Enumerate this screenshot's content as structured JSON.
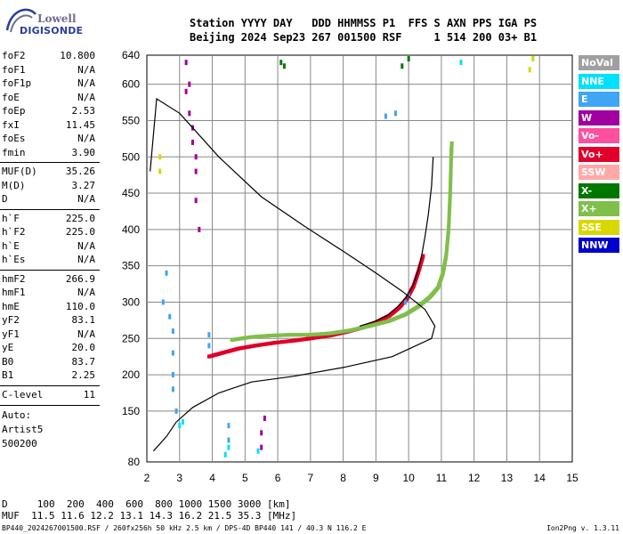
{
  "logo": {
    "line1": "Lowell",
    "line2": "DIGISONDE"
  },
  "header": {
    "line1": "Station YYYY DAY   DDD HHMMSS P1  FFS S AXN PPS IGA PS",
    "line2": "Beijing 2024 Sep23 267 001500 RSF     1 514 200 03+ B1"
  },
  "params": [
    {
      "key": "foF2",
      "value": "10.800"
    },
    {
      "key": "foF1",
      "value": "N/A"
    },
    {
      "key": "foF1p",
      "value": "N/A"
    },
    {
      "key": "foE",
      "value": "N/A"
    },
    {
      "key": "foEp",
      "value": "2.53"
    },
    {
      "key": "fxI",
      "value": "11.45"
    },
    {
      "key": "foEs",
      "value": "N/A"
    },
    {
      "key": "fmin",
      "value": "3.90"
    },
    {
      "key": "MUF(D)",
      "value": "35.26"
    },
    {
      "key": "M(D)",
      "value": "3.27"
    },
    {
      "key": "D",
      "value": "N/A"
    },
    {
      "key": "h`F",
      "value": "225.0"
    },
    {
      "key": "h`F2",
      "value": "225.0"
    },
    {
      "key": "h`E",
      "value": "N/A"
    },
    {
      "key": "h`Es",
      "value": "N/A"
    },
    {
      "key": "hmF2",
      "value": "266.9"
    },
    {
      "key": "hmF1",
      "value": "N/A"
    },
    {
      "key": "hmE",
      "value": "110.0"
    },
    {
      "key": "yF2",
      "value": "83.1"
    },
    {
      "key": "yF1",
      "value": "N/A"
    },
    {
      "key": "yE",
      "value": "20.0"
    },
    {
      "key": "B0",
      "value": "83.7"
    },
    {
      "key": "B1",
      "value": "2.25"
    },
    {
      "key": "C-level",
      "value": "11"
    }
  ],
  "autoscaling": {
    "label": "Auto:",
    "program": "Artist5",
    "version": "500200"
  },
  "legend": [
    {
      "label": "NoVal",
      "color": "#a0a0a0"
    },
    {
      "label": "NNE",
      "color": "#00e0ff"
    },
    {
      "label": "E",
      "color": "#3fa5f5"
    },
    {
      "label": "W",
      "color": "#a000a0"
    },
    {
      "label": "Vo-",
      "color": "#ff50a0"
    },
    {
      "label": "Vo+",
      "color": "#e0002a"
    },
    {
      "label": "SSW",
      "color": "#ffa8a8"
    },
    {
      "label": "X-",
      "color": "#007800"
    },
    {
      "label": "X+",
      "color": "#7fbf4a"
    },
    {
      "label": "SSE",
      "color": "#d8d800"
    },
    {
      "label": "NNW",
      "color": "#0000cc"
    }
  ],
  "footer": {
    "distance_line": "D     100  200  400  600  800 1000 1500 3000 [km]",
    "muf_line": "MUF  11.5 11.6 12.2 13.1 14.3 16.2 21.5 35.3 [MHz]",
    "file_line": "BP440_2024267001500.RSF / 260fx256h 50 kHz 2.5 km / DPS-4D BP440 141 / 40.3 N 116.2 E",
    "version_line": "Ion2Png v. 1.3.11"
  },
  "chart_data": {
    "type": "scatter",
    "title": "",
    "xlabel": "",
    "ylabel": "",
    "xlim": [
      2,
      15
    ],
    "ylim": [
      80,
      640
    ],
    "x_ticks": [
      2,
      3,
      4,
      5,
      6,
      7,
      8,
      9,
      10,
      11,
      12,
      13,
      14,
      15
    ],
    "y_ticks": [
      80,
      150,
      200,
      250,
      300,
      350,
      400,
      450,
      500,
      550,
      600,
      640
    ],
    "grid": true,
    "series": [
      {
        "name": "Vo+",
        "color": "#e0002a",
        "points": [
          [
            3.9,
            225
          ],
          [
            4.3,
            230
          ],
          [
            4.8,
            236
          ],
          [
            5.3,
            240
          ],
          [
            5.9,
            244
          ],
          [
            6.5,
            247
          ],
          [
            7.0,
            250
          ],
          [
            7.6,
            254
          ],
          [
            8.1,
            259
          ],
          [
            8.6,
            265
          ],
          [
            9.0,
            272
          ],
          [
            9.4,
            281
          ],
          [
            9.7,
            292
          ],
          [
            9.95,
            305
          ],
          [
            10.15,
            322
          ],
          [
            10.3,
            342
          ],
          [
            10.45,
            365
          ]
        ]
      },
      {
        "name": "X+",
        "color": "#7fbf4a",
        "points": [
          [
            4.6,
            248
          ],
          [
            5.2,
            252
          ],
          [
            5.8,
            254
          ],
          [
            6.4,
            255
          ],
          [
            7.0,
            255
          ],
          [
            7.6,
            257
          ],
          [
            8.2,
            261
          ],
          [
            8.8,
            267
          ],
          [
            9.4,
            274
          ],
          [
            9.9,
            283
          ],
          [
            10.3,
            294
          ],
          [
            10.65,
            307
          ],
          [
            10.9,
            320
          ],
          [
            11.05,
            340
          ],
          [
            11.15,
            365
          ],
          [
            11.22,
            400
          ],
          [
            11.27,
            450
          ],
          [
            11.3,
            500
          ],
          [
            11.32,
            520
          ]
        ]
      },
      {
        "name": "E",
        "color": "#3fa5f5",
        "points": [
          [
            2.5,
            300
          ],
          [
            2.6,
            340
          ],
          [
            2.7,
            280
          ],
          [
            2.8,
            260
          ],
          [
            2.8,
            230
          ],
          [
            2.8,
            200
          ],
          [
            2.8,
            180
          ],
          [
            2.9,
            150
          ],
          [
            3.9,
            240
          ],
          [
            3.9,
            255
          ],
          [
            4.5,
            130
          ],
          [
            4.5,
            110
          ],
          [
            9.3,
            556
          ],
          [
            9.6,
            560
          ],
          [
            9.9,
            300
          ],
          [
            10.0,
            310
          ]
        ]
      },
      {
        "name": "W",
        "color": "#a000a0",
        "points": [
          [
            3.2,
            630
          ],
          [
            3.3,
            600
          ],
          [
            3.3,
            560
          ],
          [
            3.4,
            520
          ],
          [
            3.5,
            480
          ],
          [
            3.5,
            440
          ],
          [
            3.6,
            400
          ],
          [
            3.2,
            590
          ],
          [
            3.4,
            540
          ],
          [
            3.5,
            500
          ],
          [
            5.5,
            100
          ],
          [
            5.5,
            120
          ],
          [
            5.6,
            140
          ]
        ]
      },
      {
        "name": "NNE",
        "color": "#00e0ff",
        "points": [
          [
            3.0,
            130
          ],
          [
            3.1,
            135
          ],
          [
            4.4,
            90
          ],
          [
            4.5,
            100
          ],
          [
            5.4,
            95
          ],
          [
            11.6,
            630
          ],
          [
            13.8,
            635
          ]
        ]
      },
      {
        "name": "SSE",
        "color": "#d8d800",
        "points": [
          [
            2.4,
            500
          ],
          [
            2.4,
            480
          ],
          [
            13.7,
            620
          ],
          [
            13.8,
            635
          ]
        ]
      },
      {
        "name": "X-",
        "color": "#007800",
        "points": [
          [
            6.1,
            630
          ],
          [
            6.2,
            625
          ],
          [
            9.8,
            625
          ],
          [
            10.0,
            635
          ]
        ]
      }
    ],
    "profile": {
      "name": "",
      "color": "#000000",
      "points": [
        [
          2.1,
          480
        ],
        [
          2.3,
          580
        ],
        [
          3.0,
          560
        ],
        [
          4.2,
          500
        ],
        [
          5.5,
          445
        ],
        [
          6.8,
          405
        ],
        [
          8.0,
          370
        ],
        [
          9.0,
          340
        ],
        [
          9.8,
          315
        ],
        [
          10.5,
          290
        ],
        [
          10.8,
          267
        ],
        [
          10.7,
          250
        ],
        [
          9.5,
          225
        ],
        [
          8.0,
          210
        ],
        [
          6.5,
          198
        ],
        [
          5.2,
          190
        ],
        [
          4.2,
          175
        ],
        [
          3.4,
          155
        ],
        [
          2.9,
          135
        ],
        [
          2.6,
          115
        ],
        [
          2.2,
          95
        ]
      ]
    },
    "trace_line": {
      "name": "",
      "color": "#000000",
      "points": [
        [
          10.75,
          500
        ],
        [
          10.7,
          460
        ],
        [
          10.6,
          420
        ],
        [
          10.5,
          390
        ],
        [
          10.4,
          365
        ],
        [
          10.3,
          345
        ],
        [
          10.15,
          325
        ],
        [
          9.95,
          308
        ],
        [
          9.7,
          295
        ],
        [
          9.4,
          283
        ],
        [
          9.0,
          274
        ],
        [
          8.5,
          267
        ]
      ]
    }
  }
}
